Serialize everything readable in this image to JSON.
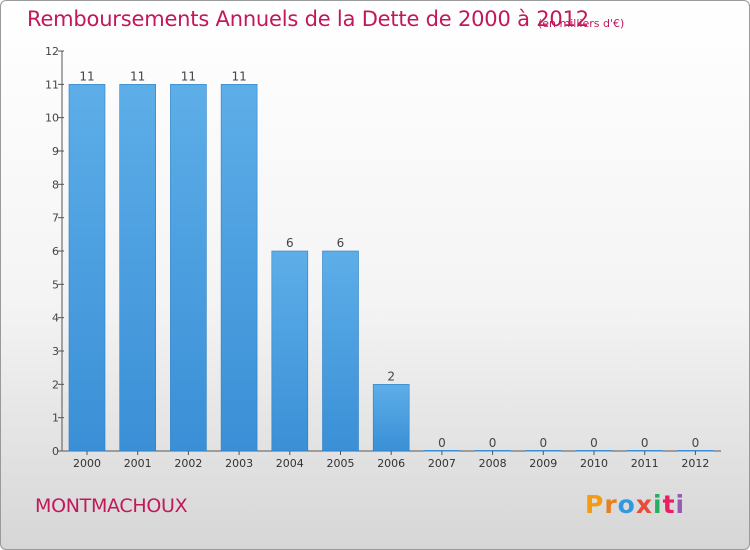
{
  "header": {
    "title": "Remboursements Annuels de la Dette de 2000 à 2012",
    "subtitle": "(en milliers d'€)"
  },
  "commune_name": "MONTMACHOUX",
  "logo": {
    "letters": [
      "P",
      "r",
      "o",
      "x",
      "i",
      "t",
      "i"
    ],
    "colors": [
      "#f39c12",
      "#e67e22",
      "#3498db",
      "#e74c3c",
      "#27ae60",
      "#e91e63",
      "#9b59b6"
    ]
  },
  "colors": {
    "bar": "#3a8fd6",
    "bar_light": "#5daee8",
    "accent": "#c2185b"
  },
  "chart_data": {
    "type": "bar",
    "categories": [
      "2000",
      "2001",
      "2002",
      "2003",
      "2004",
      "2005",
      "2006",
      "2007",
      "2008",
      "2009",
      "2010",
      "2011",
      "2012"
    ],
    "values": [
      11,
      11,
      11,
      11,
      6,
      6,
      2,
      0,
      0,
      0,
      0,
      0,
      0
    ],
    "data_labels": [
      "11",
      "11",
      "11",
      "11",
      "6",
      "6",
      "2",
      "0",
      "0",
      "0",
      "0",
      "0",
      "0"
    ],
    "yticks": [
      "0",
      "1",
      "2",
      "3",
      "4",
      "5",
      "6",
      "7",
      "8",
      "9",
      "10",
      "11",
      "12"
    ],
    "ylim": [
      0,
      12
    ],
    "grid": false
  }
}
